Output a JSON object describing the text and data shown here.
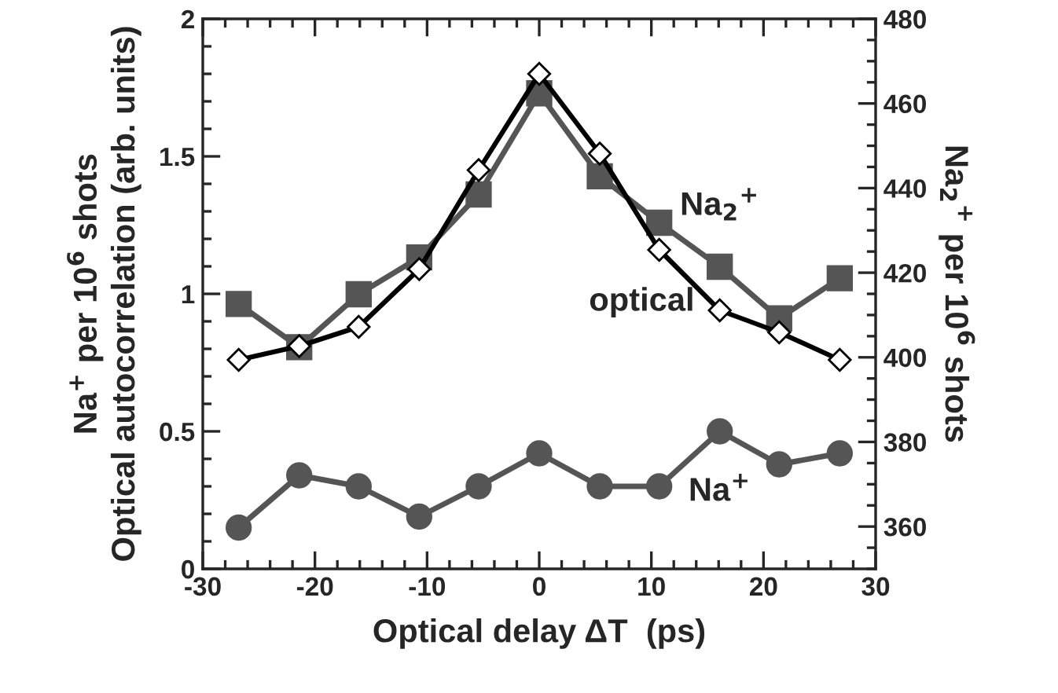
{
  "chart_data": {
    "type": "line",
    "xlabel": "Optical delay ΔT  (ps)",
    "ylabel": "Na$^{+}$ per 10$^{6}$ shots\nOptical autocorrelation (arb. units)",
    "y2label": "Na$_{2}$$^{+}$ per 10$^{6}$ shots",
    "x": [
      -26.8,
      -21.4,
      -16.1,
      -10.7,
      -5.4,
      0,
      5.4,
      10.7,
      16.1,
      21.4,
      26.8
    ],
    "xlim": [
      -30,
      30
    ],
    "xticks": [
      -30,
      -20,
      -10,
      0,
      10,
      20,
      30
    ],
    "ylim": [
      0,
      2
    ],
    "yticks": [
      0,
      0.5,
      1,
      1.5,
      2
    ],
    "y2lim": [
      350,
      480
    ],
    "y2ticks": [
      360,
      380,
      400,
      420,
      440,
      460,
      480
    ],
    "grid": false,
    "legend": false,
    "series": [
      {
        "name": "Na$_{2}$$^{+}$",
        "color": "#555555",
        "axis": "y2",
        "marker": "square",
        "values": [
          412.6,
          402.4,
          414.9,
          423.6,
          438.5,
          462.4,
          442.8,
          431.8,
          421.4,
          409.2,
          418.7
        ]
      },
      {
        "name": "optical",
        "color": "#000000",
        "marker": "diamond",
        "values": [
          0.76,
          0.81,
          0.88,
          1.09,
          1.45,
          1.8,
          1.51,
          1.16,
          0.94,
          0.86,
          0.76
        ]
      },
      {
        "name": "Na$^{+}$",
        "color": "#555555",
        "marker": "circle",
        "values": [
          0.15,
          0.34,
          0.3,
          0.19,
          0.3,
          0.42,
          0.3,
          0.3,
          0.5,
          0.38,
          0.42
        ]
      }
    ]
  }
}
